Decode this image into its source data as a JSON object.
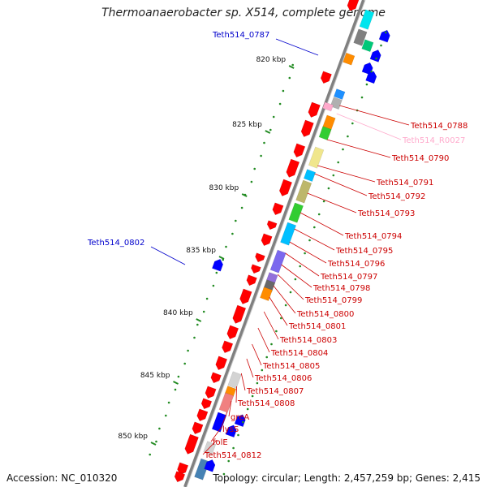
{
  "title": "Thermoanaerobacter sp. X514, complete genome",
  "footer": {
    "accession": "Accession: NC_010320",
    "topology": "Topology: circular; Length: 2,457,259 bp; Genes: 2,415"
  },
  "colors": {
    "cds": "#ff0000",
    "label_right": "#cc0000",
    "label_blue": "#0000cc",
    "rna": "#ffaacc",
    "backbone": "#808080",
    "tick": "#228b22"
  },
  "scale_labels": [
    "820 kbp",
    "825 kbp",
    "830 kbp",
    "835 kbp",
    "840 kbp",
    "845 kbp",
    "850 kbp"
  ],
  "left_labels": [
    "Teth514_0787",
    "Teth514_0802"
  ],
  "right_labels": [
    "Teth514_0788",
    "Teth514_R0027",
    "Teth514_0790",
    "Teth514_0791",
    "Teth514_0792",
    "Teth514_0793",
    "Teth514_0794",
    "Teth514_0795",
    "Teth514_0796",
    "Teth514_0797",
    "Teth514_0798",
    "Teth514_0799",
    "Teth514_0800",
    "Teth514_0801",
    "Teth514_0803",
    "Teth514_0804",
    "Teth514_0805",
    "Teth514_0806",
    "Teth514_0807",
    "Teth514_0808",
    "greA",
    "lysS",
    "folE",
    "Teth514_0812"
  ]
}
